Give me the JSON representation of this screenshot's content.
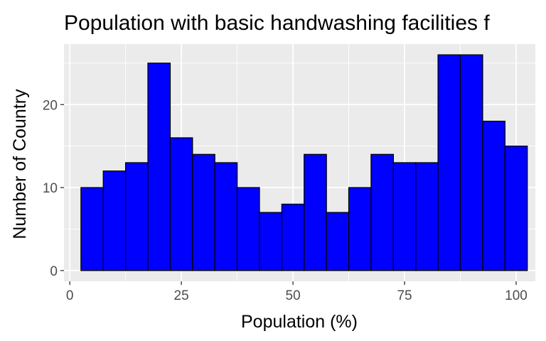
{
  "chart_data": {
    "type": "bar",
    "title": "Population with basic handwashing facilities f",
    "xlabel": "Population (%)",
    "ylabel": "Number of Country",
    "bin_width": 5,
    "bin_centers": [
      5,
      10,
      15,
      20,
      25,
      30,
      35,
      40,
      45,
      50,
      55,
      60,
      65,
      70,
      75,
      80,
      85,
      90,
      95,
      100
    ],
    "values": [
      10,
      12,
      13,
      25,
      16,
      14,
      13,
      10,
      7,
      8,
      14,
      7,
      10,
      14,
      13,
      13,
      26,
      26,
      18,
      15
    ],
    "xlim": [
      -1.3,
      104.3
    ],
    "ylim": [
      -1.3,
      27.3
    ],
    "x_ticks": [
      0,
      25,
      50,
      75,
      100
    ],
    "x_tick_labels": [
      "0",
      "25",
      "50",
      "75",
      "100"
    ],
    "y_ticks": [
      0,
      10,
      20
    ],
    "y_tick_labels": [
      "0",
      "10",
      "20"
    ],
    "grid": true,
    "colors": {
      "bar_fill": "#0000ff",
      "bar_stroke": "#000000",
      "panel_background": "#ebebeb",
      "grid_line": "#ffffff"
    }
  }
}
